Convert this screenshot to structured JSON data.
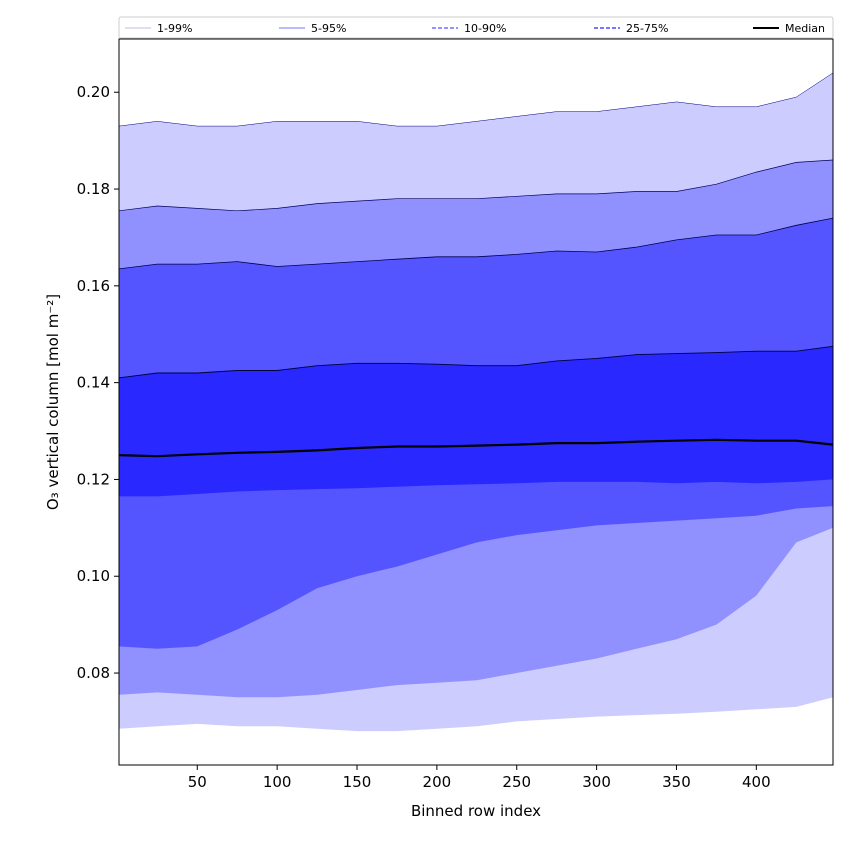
{
  "chart_data": {
    "type": "area",
    "xlabel": "Binned row index",
    "ylabel": "O₃ vertical column [mol m⁻²]",
    "xlim": [
      1,
      448
    ],
    "ylim": [
      0.061,
      0.211
    ],
    "xticks": [
      50,
      100,
      150,
      200,
      250,
      300,
      350,
      400
    ],
    "yticks": [
      0.08,
      0.1,
      0.12,
      0.14,
      0.16,
      0.18,
      0.2
    ],
    "ytick_labels": [
      "0.08",
      "0.10",
      "0.12",
      "0.14",
      "0.16",
      "0.18",
      "0.20"
    ],
    "legend_position": "top",
    "x": [
      1,
      25,
      50,
      75,
      100,
      125,
      150,
      175,
      200,
      225,
      250,
      275,
      300,
      325,
      350,
      375,
      400,
      425,
      448
    ],
    "bands": [
      {
        "name": "1-99%",
        "color": "#ccccff",
        "line_color": "#000080",
        "line_style": "solid",
        "line_width": 0.5,
        "lower": [
          0.0685,
          0.069,
          0.0695,
          0.069,
          0.069,
          0.0685,
          0.068,
          0.068,
          0.0685,
          0.069,
          0.07,
          0.0705,
          0.071,
          0.0713,
          0.0716,
          0.072,
          0.0725,
          0.073,
          0.075
        ],
        "upper": [
          0.193,
          0.194,
          0.193,
          0.193,
          0.194,
          0.194,
          0.194,
          0.193,
          0.193,
          0.194,
          0.195,
          0.196,
          0.196,
          0.197,
          0.198,
          0.197,
          0.197,
          0.199,
          0.204
        ]
      },
      {
        "name": "5-95%",
        "color": "#9090ff",
        "line_color": "#000060",
        "line_style": "solid",
        "line_width": 0.7,
        "lower": [
          0.0755,
          0.076,
          0.0755,
          0.075,
          0.075,
          0.0755,
          0.0765,
          0.0775,
          0.078,
          0.0785,
          0.08,
          0.0815,
          0.083,
          0.085,
          0.087,
          0.09,
          0.096,
          0.107,
          0.11
        ],
        "upper": [
          0.1755,
          0.1765,
          0.176,
          0.1755,
          0.176,
          0.177,
          0.1775,
          0.178,
          0.178,
          0.178,
          0.1785,
          0.179,
          0.179,
          0.1795,
          0.1795,
          0.181,
          0.1835,
          0.1855,
          0.186
        ]
      },
      {
        "name": "10-90%",
        "color": "#5555ff",
        "line_color": "#000050",
        "line_style": "dashed",
        "line_width": 0.8,
        "lower": [
          0.0855,
          0.085,
          0.0855,
          0.089,
          0.093,
          0.0975,
          0.1,
          0.102,
          0.1045,
          0.107,
          0.1085,
          0.1095,
          0.1105,
          0.111,
          0.1115,
          0.112,
          0.1125,
          0.114,
          0.1145
        ],
        "upper": [
          0.1635,
          0.1645,
          0.1645,
          0.165,
          0.164,
          0.1645,
          0.165,
          0.1655,
          0.166,
          0.166,
          0.1665,
          0.1672,
          0.167,
          0.168,
          0.1695,
          0.1705,
          0.1705,
          0.1725,
          0.174
        ]
      },
      {
        "name": "25-75%",
        "color": "#2828ff",
        "line_color": "#000040",
        "line_style": "dashed",
        "line_width": 0.9,
        "lower": [
          0.1165,
          0.1165,
          0.117,
          0.1175,
          0.1178,
          0.118,
          0.1182,
          0.1185,
          0.1188,
          0.119,
          0.1192,
          0.1195,
          0.1195,
          0.1195,
          0.1192,
          0.1195,
          0.1192,
          0.1195,
          0.12
        ],
        "upper": [
          0.141,
          0.142,
          0.142,
          0.1425,
          0.1425,
          0.1435,
          0.144,
          0.144,
          0.1438,
          0.1435,
          0.1435,
          0.1445,
          0.145,
          0.1458,
          0.146,
          0.1462,
          0.1465,
          0.1465,
          0.1475
        ]
      }
    ],
    "median": {
      "name": "Median",
      "color": "#000000",
      "values": [
        0.125,
        0.1248,
        0.1252,
        0.1255,
        0.1257,
        0.126,
        0.1265,
        0.1268,
        0.1268,
        0.127,
        0.1272,
        0.1275,
        0.1275,
        0.1278,
        0.128,
        0.1282,
        0.128,
        0.128,
        0.1272
      ]
    }
  }
}
